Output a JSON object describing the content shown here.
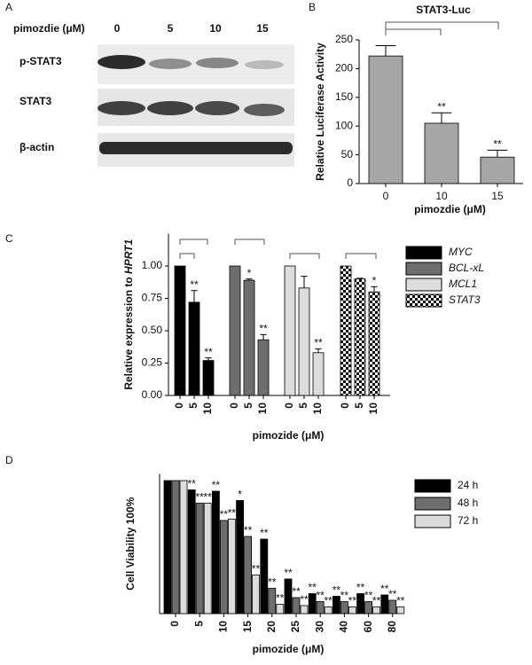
{
  "panel_labels": [
    "A",
    "B",
    "C",
    "D"
  ],
  "blot": {
    "header": "pimozdie (μM)",
    "lanes": [
      "0",
      "5",
      "10",
      "15"
    ],
    "rows": [
      "p-STAT3",
      "STAT3",
      "β-actin"
    ]
  },
  "chart_data": [
    {
      "type": "bar",
      "title": "STAT3-Luc",
      "categories": [
        "0",
        "10",
        "15"
      ],
      "values": [
        222,
        105,
        46
      ],
      "errors": [
        18,
        18,
        12
      ],
      "markers": [
        null,
        "**",
        "**"
      ],
      "color": "#a6a6a6",
      "ylabel": "Relative Luciferase Activity",
      "xlabel": "pimozdie (μM)",
      "ylim": [
        0,
        250
      ],
      "yticks": [
        0,
        50,
        100,
        150,
        200,
        250
      ]
    },
    {
      "type": "bar",
      "categories": [
        "0",
        "5",
        "10"
      ],
      "grouping": "series",
      "series": [
        {
          "name": "MYC",
          "color": "#000000",
          "values": [
            1,
            0.72,
            0.27
          ],
          "errors": [
            null,
            0.09,
            0.02
          ],
          "markers": [
            null,
            "**",
            "**"
          ]
        },
        {
          "name": "BCL-xL",
          "color": "#6e6e6e",
          "values": [
            1,
            0.89,
            0.43
          ],
          "errors": [
            null,
            0.01,
            0.04
          ],
          "markers": [
            null,
            "*",
            "**"
          ]
        },
        {
          "name": "MCL1",
          "color": "#dcdcdc",
          "values": [
            1,
            0.83,
            0.33
          ],
          "errors": [
            null,
            0.09,
            0.03
          ],
          "markers": [
            null,
            null,
            "**"
          ]
        },
        {
          "name": "STAT3",
          "color": "#000000",
          "pattern": "checker",
          "values": [
            1,
            0.9,
            0.8
          ],
          "errors": [
            null,
            0.005,
            0.04
          ],
          "markers": [
            null,
            null,
            "*"
          ]
        }
      ],
      "ylabel": [
        "Relative expression to ",
        "HPRT1"
      ],
      "xlabel": "pimozide (μM)",
      "ylim": [
        0,
        1.25
      ],
      "yticks": [
        {
          "value": 0,
          "label": "0.00"
        },
        {
          "value": 0.25,
          "label": "0.25"
        },
        {
          "value": 0.5,
          "label": "0.50"
        },
        {
          "value": 0.75,
          "label": "0.75"
        },
        {
          "value": 1,
          "label": "1.00"
        }
      ]
    },
    {
      "type": "bar",
      "categories": [
        "0",
        "5",
        "10",
        "15",
        "20",
        "25",
        "30",
        "40",
        "60",
        "80"
      ],
      "grouping": "category",
      "series": [
        {
          "name": "24 h",
          "color": "#000000",
          "values": [
            100,
            93,
            92,
            85,
            56,
            26,
            15,
            13,
            15,
            14
          ],
          "markers": [
            null,
            "**",
            "**",
            "*",
            "**",
            "**",
            "**",
            "**",
            "**",
            "**"
          ]
        },
        {
          "name": "48 h",
          "color": "#6e6e6e",
          "values": [
            100,
            83,
            70,
            58,
            19,
            12,
            9,
            9,
            9,
            10
          ],
          "markers": [
            null,
            "**",
            "**",
            "**",
            "**",
            "**",
            "**",
            "**",
            "**",
            "**"
          ]
        },
        {
          "name": "72 h",
          "color": "#dcdcdc",
          "values": [
            100,
            83,
            71,
            29,
            7,
            6,
            5,
            5,
            5,
            5
          ],
          "markers": [
            null,
            "**",
            "**",
            "**",
            "**",
            "**",
            "**",
            "**",
            "**",
            "**"
          ]
        }
      ],
      "ylabel": "Cell Viability 100%",
      "xlabel": "pimozide (μM)",
      "ylim": [
        0,
        105
      ]
    }
  ]
}
